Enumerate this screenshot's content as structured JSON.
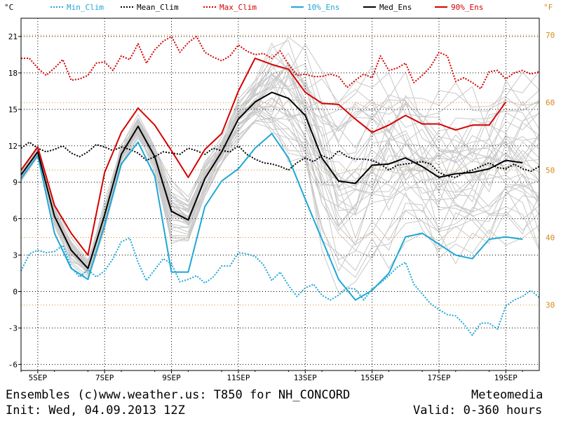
{
  "units": {
    "left": "°C",
    "right": "°F"
  },
  "legend": [
    {
      "label": "Min_Clim",
      "color": "#1ea7d6",
      "style": "dotted"
    },
    {
      "label": "Mean_Clim",
      "color": "#000000",
      "style": "dotted"
    },
    {
      "label": "Max_Clim",
      "color": "#d60000",
      "style": "dotted"
    },
    {
      "label": "10%_Ens",
      "color": "#1ea7d6",
      "style": "solid"
    },
    {
      "label": "Med_Ens",
      "color": "#000000",
      "style": "solid"
    },
    {
      "label": "90%_Ens",
      "color": "#d60000",
      "style": "solid"
    }
  ],
  "footer": {
    "line1_left": "Ensembles (c)www.weather.us: T850 for NH_CONCORD",
    "line1_right": "Meteomedia",
    "line2_left": "Init: Wed, 04.09.2013 12Z",
    "line2_right": "Valid: 0-360 hours"
  },
  "chart_data": {
    "type": "line",
    "x_unit": "hours",
    "xlim": [
      -12,
      360
    ],
    "ylim": [
      -6.5,
      22.5
    ],
    "yticks": [
      -6,
      -3,
      0,
      3,
      6,
      9,
      12,
      15,
      18,
      21
    ],
    "yticks_f": [
      30,
      40,
      50,
      60,
      70
    ],
    "xticks": [
      {
        "label": "5SEP",
        "h": 0
      },
      {
        "label": "7SEP",
        "h": 48
      },
      {
        "label": "9SEP",
        "h": 96
      },
      {
        "label": "11SEP",
        "h": 144
      },
      {
        "label": "13SEP",
        "h": 192
      },
      {
        "label": "15SEP",
        "h": 240
      },
      {
        "label": "17SEP",
        "h": 288
      },
      {
        "label": "19SEP",
        "h": 336
      }
    ],
    "grid": true,
    "series": [
      {
        "name": "Max_Clim",
        "color": "#d60000",
        "style": "dotted",
        "x": [
          -12,
          -6,
          0,
          6,
          12,
          18,
          24,
          30,
          36,
          42,
          48,
          54,
          60,
          66,
          72,
          78,
          84,
          90,
          96,
          102,
          108,
          114,
          120,
          126,
          132,
          138,
          144,
          150,
          156,
          162,
          168,
          174,
          180,
          186,
          192,
          198,
          204,
          210,
          216,
          222,
          228,
          234,
          240,
          246,
          252,
          258,
          264,
          270,
          276,
          282,
          288,
          294,
          300,
          306,
          312,
          318,
          324,
          330,
          336,
          342,
          348,
          354,
          360
        ],
        "y": [
          19.2,
          19.2,
          18.4,
          17.8,
          18.4,
          19.1,
          17.4,
          17.5,
          17.8,
          18.8,
          18.9,
          18.2,
          19.4,
          19.1,
          20.4,
          18.8,
          19.9,
          20.6,
          21.0,
          19.7,
          20.5,
          21.0,
          19.7,
          19.3,
          19.0,
          19.4,
          20.3,
          19.8,
          19.5,
          19.6,
          19.2,
          19.8,
          18.7,
          17.8,
          17.9,
          17.7,
          17.7,
          17.9,
          17.7,
          16.8,
          17.4,
          17.9,
          17.6,
          19.4,
          18.2,
          18.4,
          18.8,
          17.2,
          17.8,
          18.5,
          19.7,
          19.4,
          17.3,
          17.6,
          17.2,
          16.7,
          18.1,
          18.2,
          17.5,
          18.0,
          18.2,
          17.9,
          18.1
        ]
      },
      {
        "name": "Mean_Clim",
        "color": "#000000",
        "style": "dotted",
        "x": [
          -12,
          -6,
          0,
          6,
          12,
          18,
          24,
          30,
          36,
          42,
          48,
          54,
          60,
          66,
          72,
          78,
          84,
          90,
          96,
          102,
          108,
          114,
          120,
          126,
          132,
          138,
          144,
          150,
          156,
          162,
          168,
          174,
          180,
          186,
          192,
          198,
          204,
          210,
          216,
          222,
          228,
          234,
          240,
          246,
          252,
          258,
          264,
          270,
          276,
          282,
          288,
          294,
          300,
          306,
          312,
          318,
          324,
          330,
          336,
          342,
          348,
          354,
          360
        ],
        "y": [
          11.8,
          12.3,
          11.8,
          11.5,
          11.7,
          12.0,
          11.4,
          11.1,
          11.5,
          12.1,
          11.9,
          11.6,
          11.9,
          11.7,
          11.4,
          10.8,
          11.1,
          11.5,
          11.4,
          11.3,
          11.8,
          11.6,
          11.3,
          11.8,
          11.6,
          11.5,
          12.0,
          11.3,
          10.9,
          10.6,
          10.5,
          10.3,
          10.0,
          10.6,
          11.0,
          10.7,
          11.2,
          10.9,
          11.6,
          11.1,
          10.9,
          10.9,
          10.8,
          10.5,
          10.0,
          10.4,
          10.5,
          10.6,
          10.7,
          10.5,
          9.8,
          9.5,
          9.4,
          9.8,
          10.0,
          10.3,
          10.6,
          10.2,
          10.1,
          10.5,
          10.1,
          9.9,
          10.3
        ]
      },
      {
        "name": "Min_Clim",
        "color": "#1ea7d6",
        "style": "dotted",
        "x": [
          -12,
          -6,
          0,
          6,
          12,
          18,
          24,
          30,
          36,
          42,
          48,
          54,
          60,
          66,
          72,
          78,
          84,
          90,
          96,
          102,
          108,
          114,
          120,
          126,
          132,
          138,
          144,
          150,
          156,
          162,
          168,
          174,
          180,
          186,
          192,
          198,
          204,
          210,
          216,
          222,
          228,
          234,
          240,
          246,
          252,
          258,
          264,
          270,
          276,
          282,
          288,
          294,
          300,
          306,
          312,
          318,
          324,
          330,
          336,
          342,
          348,
          354,
          360
        ],
        "y": [
          1.7,
          3.1,
          3.4,
          3.2,
          3.3,
          3.8,
          2.0,
          1.2,
          1.8,
          1.2,
          1.7,
          2.7,
          4.1,
          4.4,
          2.4,
          0.9,
          1.8,
          2.7,
          2.3,
          0.8,
          1.0,
          1.3,
          0.7,
          1.2,
          2.1,
          2.1,
          3.2,
          3.1,
          2.9,
          2.2,
          0.9,
          1.6,
          0.5,
          -0.4,
          0.3,
          0.6,
          -0.3,
          -0.7,
          -0.3,
          0.3,
          0.2,
          -0.7,
          0.2,
          0.7,
          1.3,
          2.0,
          2.4,
          0.6,
          -0.2,
          -1.0,
          -1.5,
          -1.9,
          -2.0,
          -2.7,
          -3.6,
          -2.6,
          -2.6,
          -3.1,
          -1.2,
          -0.7,
          -0.4,
          0.1,
          -0.5
        ]
      },
      {
        "name": "10%_Ens",
        "color": "#1ea7d6",
        "style": "solid",
        "x": [
          -12,
          0,
          12,
          24,
          36,
          48,
          60,
          72,
          84,
          96,
          108,
          120,
          132,
          144,
          156,
          168,
          180,
          192,
          204,
          216,
          228,
          240,
          252,
          264,
          276,
          288,
          300,
          312,
          324,
          336,
          348
        ],
        "y": [
          9.3,
          11.2,
          4.8,
          1.9,
          1.0,
          5.5,
          10.5,
          12.3,
          9.5,
          1.6,
          1.6,
          7.0,
          9.1,
          10.1,
          11.8,
          13.0,
          11.0,
          7.6,
          4.3,
          1.0,
          -0.7,
          0.1,
          1.5,
          4.5,
          4.8,
          3.9,
          3.0,
          2.7,
          4.3,
          4.5,
          4.3
        ]
      },
      {
        "name": "Med_Ens",
        "color": "#000000",
        "style": "solid",
        "x": [
          -12,
          0,
          12,
          24,
          36,
          48,
          60,
          72,
          84,
          96,
          108,
          120,
          132,
          144,
          156,
          168,
          180,
          192,
          204,
          216,
          228,
          240,
          252,
          264,
          276,
          288,
          300,
          312,
          324,
          336,
          348
        ],
        "y": [
          9.6,
          11.5,
          6.2,
          3.4,
          1.9,
          6.3,
          11.3,
          13.6,
          11.1,
          6.6,
          5.9,
          9.3,
          11.5,
          14.2,
          15.6,
          16.4,
          15.9,
          14.5,
          11.0,
          9.1,
          8.9,
          10.4,
          10.5,
          11.0,
          10.3,
          9.4,
          9.7,
          9.8,
          10.1,
          10.8,
          10.6
        ]
      },
      {
        "name": "90%_Ens",
        "color": "#d60000",
        "style": "solid",
        "x": [
          -12,
          0,
          12,
          24,
          36,
          48,
          60,
          72,
          84,
          96,
          108,
          120,
          132,
          144,
          156,
          168,
          180,
          192,
          204,
          216,
          228,
          240,
          252,
          264,
          276,
          288,
          300,
          312,
          324,
          336
        ],
        "y": [
          10.0,
          11.9,
          7.1,
          4.8,
          3.0,
          9.8,
          13.1,
          15.1,
          13.7,
          11.6,
          9.4,
          11.7,
          13.0,
          16.5,
          19.2,
          18.7,
          18.3,
          16.4,
          15.5,
          15.4,
          14.2,
          13.1,
          13.7,
          14.5,
          13.8,
          13.8,
          13.3,
          13.7,
          13.7,
          15.6
        ]
      }
    ]
  }
}
